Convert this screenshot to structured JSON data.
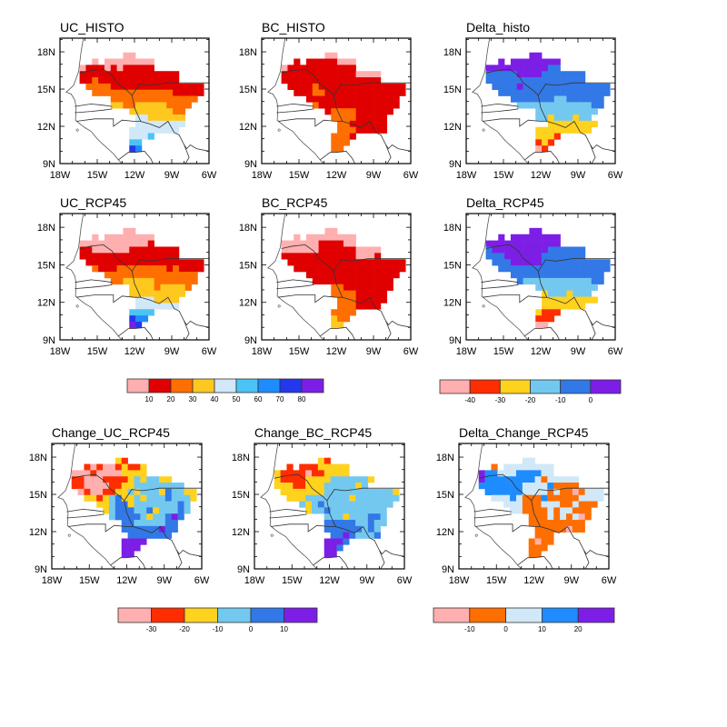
{
  "palettes": {
    "abs": [
      "#ffafaf",
      "#e00000",
      "#ff6e00",
      "#ffc81e",
      "#d0e8f8",
      "#4bc3f5",
      "#1e8cff",
      "#2337ee",
      "#7d1ee6"
    ],
    "delta": [
      "#ffafaf",
      "#ff2d00",
      "#ffd21e",
      "#73c8f0",
      "#3278e6",
      "#7d1ee6"
    ],
    "change": [
      "#ffafaf",
      "#ff2d00",
      "#ffd21e",
      "#73c8f0",
      "#3278e6",
      "#7d1ee6"
    ],
    "dchange": [
      "#ffafaf",
      "#ff6e00",
      "#d0e8f8",
      "#1e8cff",
      "#7d1ee6"
    ]
  },
  "axes": {
    "lat_labels": [
      "18N",
      "15N",
      "12N",
      "9N"
    ],
    "lon_labels": [
      "18W",
      "15W",
      "12W",
      "9W",
      "6W"
    ],
    "lat_values": [
      18,
      15,
      12,
      9
    ],
    "lon_values": [
      -18,
      -15,
      -12,
      -9,
      -6
    ],
    "lat_range": [
      9,
      19.1
    ],
    "lon_range": [
      -18,
      -6
    ],
    "grid_resolution_deg": 0.5
  },
  "colorbars": [
    {
      "palette": "abs",
      "labels": [
        "10",
        "20",
        "30",
        "40",
        "50",
        "60",
        "70",
        "80"
      ]
    },
    {
      "palette": "delta",
      "labels": [
        "-40",
        "-30",
        "-20",
        "-10",
        "0"
      ]
    },
    {
      "palette": "change",
      "labels": [
        "-30",
        "-20",
        "-10",
        "0",
        "10"
      ]
    },
    {
      "palette": "dchange",
      "labels": [
        "-10",
        "0",
        "10",
        "20"
      ]
    }
  ],
  "chart_data": [
    {
      "type": "heatmap",
      "title": "UC_HISTO",
      "palette": "abs",
      "rows": [
        "........................",
        "........................",
        "..........00............",
        ".....0.00000000.........",
        "...011101011111.........",
        "...1111111111111111.....",
        "...1121111111111111.....",
        "....2222111111111111111.",
        ".....222222222222211111.",
        "........22222222222222..",
        "........3322333332222...",
        "...........333333322....",
        "............44333333....",
        "............44444444....",
        "...........44444444.....",
        "...........4445.........",
        "...........55...........",
        "...........76...........",
        "........................",
        "........................"
      ]
    },
    {
      "type": "heatmap",
      "title": "BC_HISTO",
      "palette": "abs",
      "rows": [
        "........................",
        "........................",
        "..........00............",
        ".....1.11111000.........",
        "...011111111111.........",
        "...1111111111110000.....",
        "...1111111111111111.....",
        "....1111211111111111111.",
        ".....111221111111111111.",
        ".......111111111111111..",
        "........21111111111111..",
        "..........12222111111...",
        "...........222211111....",
        "............22111111....",
        "............22211111....",
        "...........2221.........",
        "...........222..........",
        "...........22...........",
        "........................",
        "........................"
      ]
    },
    {
      "type": "heatmap",
      "title": "Delta_histo",
      "palette": "delta",
      "rows": [
        "........................",
        "........................",
        "..........55............",
        ".....5.55555555.........",
        "...555555555544.........",
        "...4444455554444444.....",
        "...4444444444444444.....",
        "....4444544444444444444.",
        ".....444444444444444444.",
        ".......444444433444444..",
        "........33333333333344..",
        "...........3333333333...",
        "...........332333233....",
        ".............22222222...",
        "...........222222222....",
        "...........2221.........",
        "...........121..........",
        "...........01...........",
        "........................",
        "........................"
      ]
    },
    {
      "type": "heatmap",
      "title": "UC_RCP45",
      "palette": "abs",
      "rows": [
        "........................",
        "........................",
        "..........00............",
        ".....0.00000000.........",
        "...000000000001.........",
        "...1100000011111111.....",
        "...1111111111111111.....",
        "....1111111111111111111.",
        ".....211122222222121111.",
        ".......222222222222222..",
        "........22333332222222..",
        "...........3333233332...",
        "...........333333333....",
        "............4443333.....",
        "............4444444.....",
        "...........5555.........",
        "...........766..........",
        "...........87...........",
        "........................",
        "........................"
      ]
    },
    {
      "type": "heatmap",
      "title": "BC_RCP45",
      "palette": "abs",
      "rows": [
        "........................",
        "........................",
        "..........00............",
        ".....0.00000000.........",
        "...000000111100.........",
        "...0000001111110000.....",
        "...1111111111110001.....",
        "....1111111111111111111.",
        ".....111111111111111111.",
        ".......111111111111111..",
        "........1111111111111...",
        "...........2211111111...",
        "...........222211111....",
        "............22211111....",
        "............2221111.....",
        "...........2222.........",
        "...........322..........",
        "...........33...........",
        "........................",
        "........................"
      ]
    },
    {
      "type": "heatmap",
      "title": "Delta_RCP45",
      "palette": "delta",
      "rows": [
        "........................",
        "........................",
        "..........55............",
        ".....5.55555555.........",
        "...555555555555.........",
        "...4555555555444444.....",
        "...4445555554444444.....",
        "....4445555544444444444.",
        ".....444444444444444444.",
        ".......444444444444444..",
        "........43333333333344..",
        "...........3333333333...",
        "............23332333....",
        "............222222222...",
        "............2222222.....",
        "...........2111.........",
        "...........111..........",
        "...........00...........",
        "........................",
        "........................"
      ]
    },
    {
      "type": "heatmap",
      "title": "Change_UC_RCP45",
      "palette": "change",
      "rows": [
        "........................",
        "........................",
        "..........21............",
        ".....1010012112.........",
        "...000100002222.........",
        "...1100011112323322.....",
        "...110000112233333333...",
        "....0100112232333243322.",
        ".....221234223233343332.",
        ".......223442333333343..",
        "........23444334233343..",
        ".........344443233454...",
        "...........443333344....",
        "...........444444544....",
        "............4444444.....",
        "...........5555.........",
        "...........555..........",
        "...........55...........",
        "........................",
        "........................"
      ]
    },
    {
      "type": "heatmap",
      "title": "Change_BC_RCP45",
      "palette": "change",
      "rows": [
        "........................",
        "........................",
        "..........21............",
        ".....1.11122222.........",
        "...211110112222.........",
        "...2111122223333332.....",
        "...222112223333323......",
        "....2222222333333333332.",
        ".....222333333323333333.",
        ".......323433333333333..",
        "........2334333333333...",
        "...........3332333443...",
        "...........4444433433...",
        "...........444444343....",
        "............44543334....",
        "...........5554.........",
        "...........554..........",
        "...........55...........",
        "........................",
        "........................"
      ]
    },
    {
      "type": "heatmap",
      "title": "Delta_Change_RCP45",
      "palette": "dchange",
      "rows": [
        "........................",
        "........................",
        "..........22............",
        ".....1.22222222.........",
        "...433222333322.........",
        "...4333333332122222.....",
        "...3333333222231111.....",
        "....3333332222121101222.",
        ".....222321113111112222.",
        ".......222111222112111..",
        "........2211112122111...",
        "...........1112121201...",
        "...........111111111....",
        "............11111011....",
        "............111.........",
        "...........1011.........",
        "...........111..........",
        "...........11...........",
        "........................",
        "........................"
      ]
    }
  ]
}
